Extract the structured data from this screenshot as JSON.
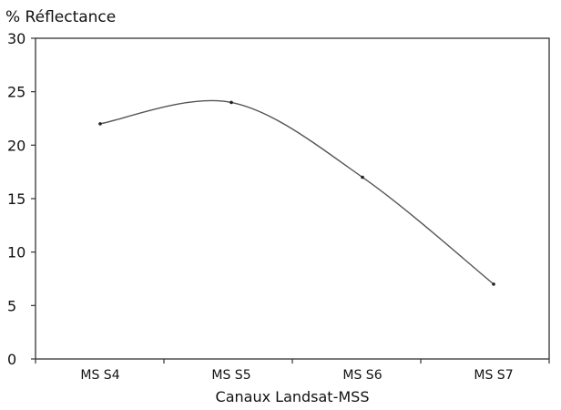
{
  "chart_data": {
    "type": "line",
    "title": "",
    "ylabel": "% Réflectance",
    "xlabel": "Canaux Landsat-MSS",
    "categories": [
      "MS S4",
      "MS S5",
      "MS S6",
      "MS S7"
    ],
    "series": [
      {
        "values": [
          22,
          24,
          17,
          7
        ]
      }
    ],
    "ylim": [
      0,
      30
    ],
    "yticks": [
      0,
      5,
      10,
      15,
      20,
      25,
      30
    ],
    "grid": false,
    "legend": "none",
    "line_color": "#555555",
    "frame_color": "#333333"
  }
}
